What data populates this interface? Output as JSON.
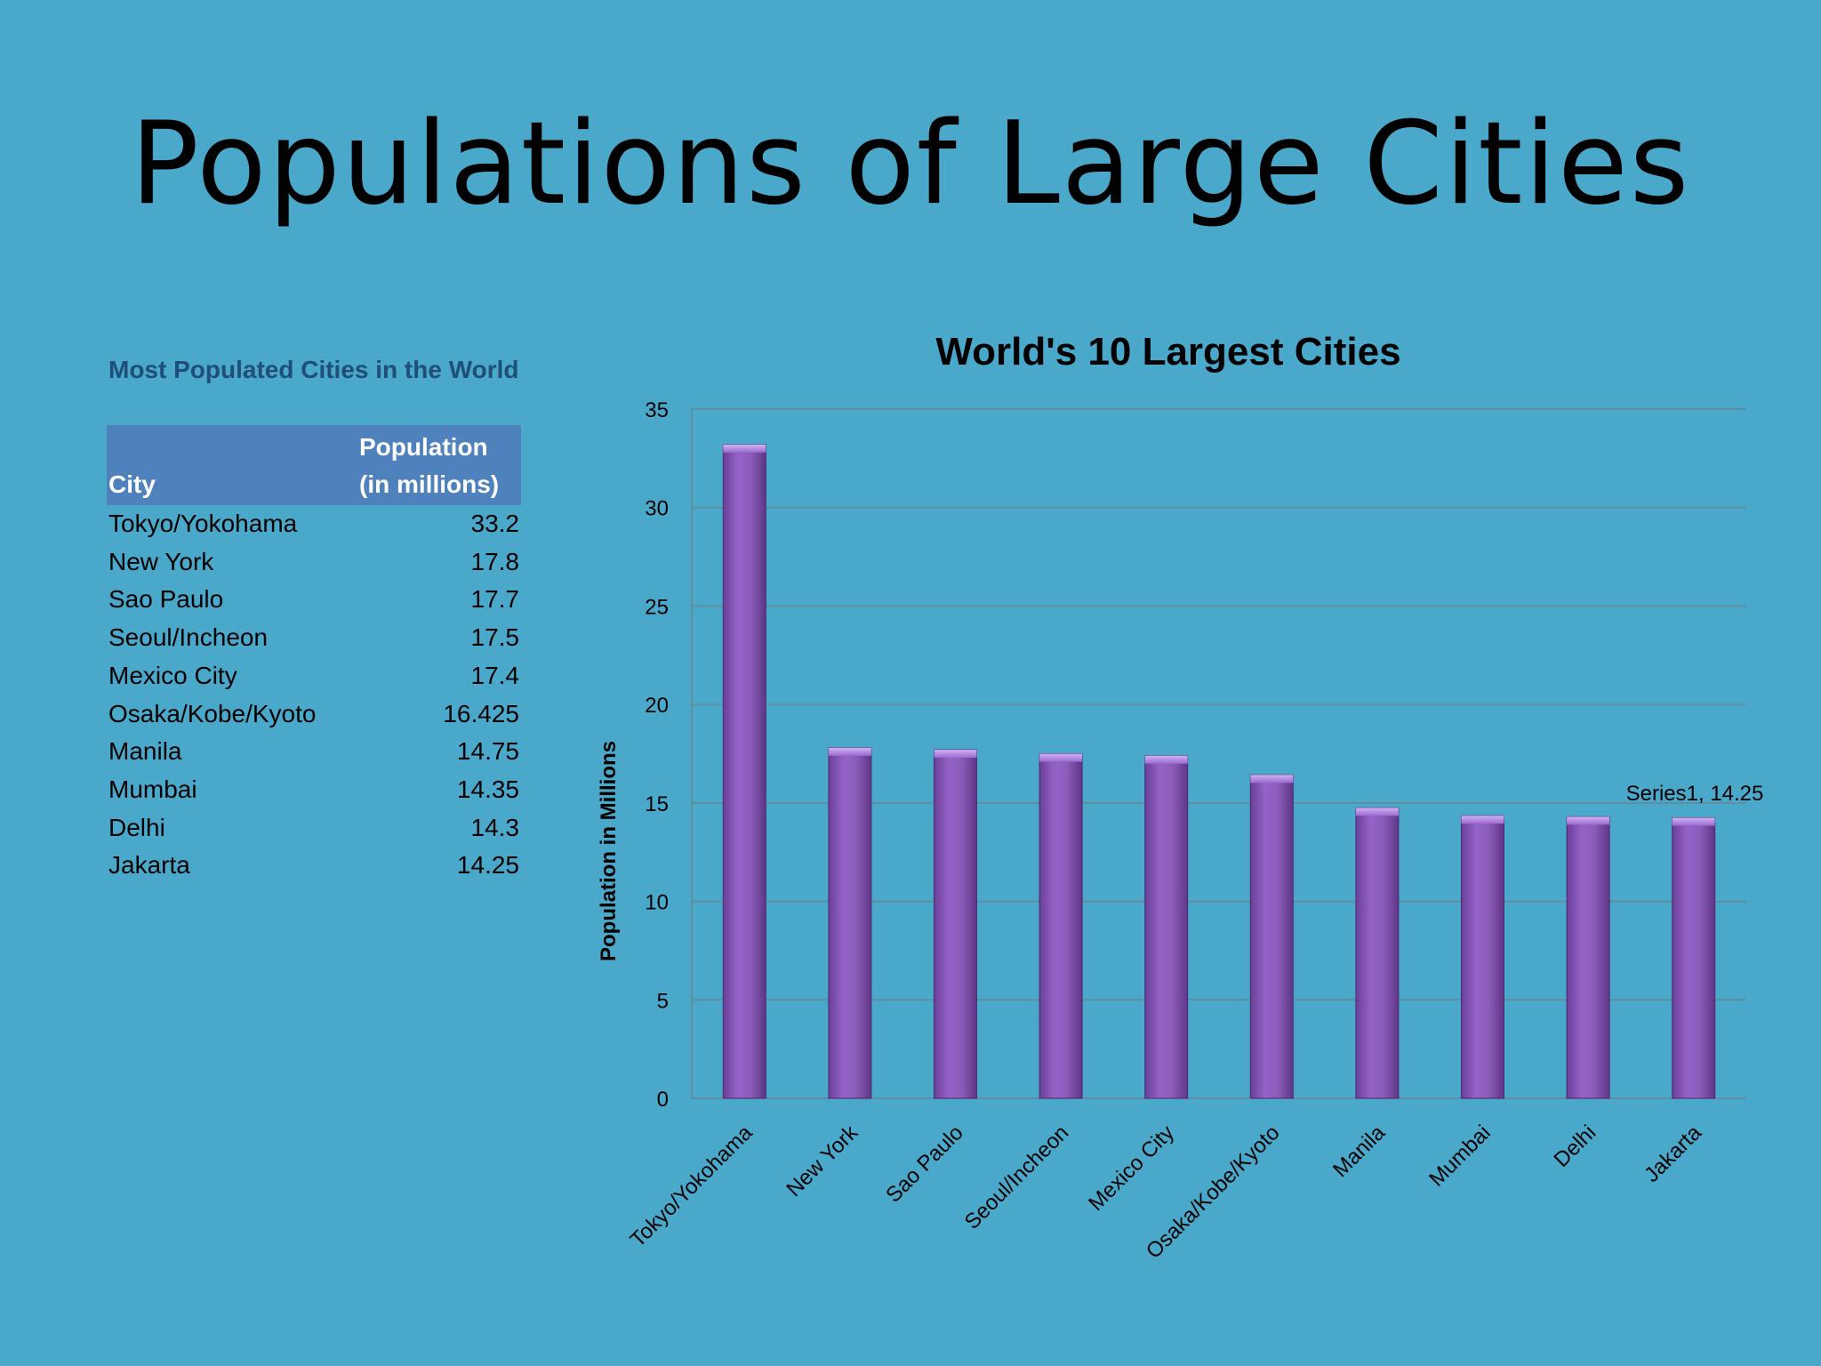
{
  "slide": {
    "title": "Populations of Large Cities"
  },
  "table": {
    "caption": "Most Populated Cities in the World",
    "header_city": "City",
    "header_pop_line1": "Population",
    "header_pop_line2": "(in millions)",
    "rows": [
      {
        "city": "Tokyo/Yokohama",
        "value": "33.2"
      },
      {
        "city": "New York",
        "value": "17.8"
      },
      {
        "city": "Sao Paulo",
        "value": "17.7"
      },
      {
        "city": "Seoul/Incheon",
        "value": "17.5"
      },
      {
        "city": "Mexico City",
        "value": "17.4"
      },
      {
        "city": "Osaka/Kobe/Kyoto",
        "value": "16.425"
      },
      {
        "city": "Manila",
        "value": "14.75"
      },
      {
        "city": "Mumbai",
        "value": "14.35"
      },
      {
        "city": "Delhi",
        "value": "14.3"
      },
      {
        "city": "Jakarta",
        "value": "14.25"
      }
    ]
  },
  "chart_data": {
    "type": "bar",
    "title": "World's 10 Largest Cities",
    "ylabel": "Population in Millions",
    "xlabel": "",
    "categories": [
      "Tokyo/Yokohama",
      "New York",
      "Sao Paulo",
      "Seoul/Incheon",
      "Mexico City",
      "Osaka/Kobe/Kyoto",
      "Manila",
      "Mumbai",
      "Delhi",
      "Jakarta"
    ],
    "series": [
      {
        "values": [
          33.2,
          17.8,
          17.7,
          17.5,
          17.4,
          16.425,
          14.75,
          14.35,
          14.3,
          14.25
        ]
      }
    ],
    "ylim": [
      0,
      35
    ],
    "yticks": [
      0,
      5,
      10,
      15,
      20,
      25,
      30,
      35
    ],
    "grid": true,
    "legend": "none",
    "annotation": "Series1, 14.25",
    "bar_color": "#8a5cb8"
  },
  "colors": {
    "background": "#4aa9cb",
    "table_header": "#4f81bd",
    "caption": "#1f4e79"
  }
}
